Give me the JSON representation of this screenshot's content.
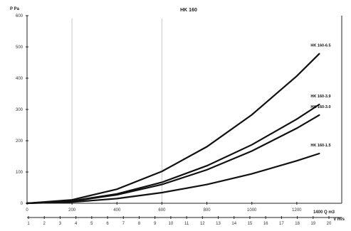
{
  "chart_data": {
    "type": "line",
    "title": "HK 160",
    "ylabel": "P Pa",
    "xlabel": "1400 Q m3",
    "x2label": "v m/s",
    "xlim": [
      0,
      1400
    ],
    "ylim": [
      0,
      600
    ],
    "x_ticks": [
      0,
      200,
      400,
      600,
      800,
      1000,
      1200
    ],
    "x_tick_labels": [
      "0",
      "200",
      "400",
      "600",
      "800",
      "1000",
      "1200"
    ],
    "y_ticks": [
      0,
      100,
      200,
      300,
      400,
      500,
      600
    ],
    "y_tick_labels": [
      "0",
      "100",
      "200",
      "300",
      "400",
      "500",
      "600"
    ],
    "v_ticks": [
      1,
      2,
      3,
      4,
      5,
      6,
      7,
      8,
      9,
      10,
      11,
      12,
      13,
      14,
      15,
      16,
      17,
      18,
      19,
      20
    ],
    "v_tick_labels": [
      "1",
      "2",
      "3",
      "4",
      "5",
      "6",
      "7",
      "8",
      "9",
      "10",
      "11",
      "12",
      "13",
      "14",
      "15",
      "16",
      "17",
      "18",
      "19",
      "20"
    ],
    "vertical_gridlines_x": [
      200,
      600
    ],
    "grid": false,
    "series": [
      {
        "name": "HK 160-6.5",
        "x": [
          0,
          200,
          400,
          600,
          800,
          1000,
          1200,
          1300
        ],
        "y": [
          0,
          11,
          45,
          102,
          181,
          283,
          407,
          478
        ]
      },
      {
        "name": "HK 160-3.9",
        "x": [
          0,
          200,
          400,
          600,
          800,
          1000,
          1200,
          1300
        ],
        "y": [
          0,
          7.5,
          30,
          67,
          120,
          187,
          269,
          316
        ]
      },
      {
        "name": "HK 160-3.0",
        "x": [
          0,
          200,
          400,
          600,
          800,
          1000,
          1200,
          1300
        ],
        "y": [
          0,
          6.7,
          27,
          60,
          107,
          167,
          240,
          282
        ]
      },
      {
        "name": "HK 160-1.5",
        "x": [
          0,
          200,
          400,
          600,
          800,
          1000,
          1200,
          1300
        ],
        "y": [
          0,
          3.8,
          15,
          34,
          60,
          94,
          136,
          159
        ]
      }
    ]
  }
}
